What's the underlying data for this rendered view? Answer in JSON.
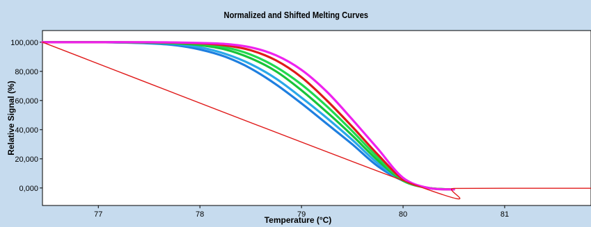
{
  "chart_data": {
    "type": "line",
    "title": "Normalized and Shifted Melting Curves",
    "xlabel": "Temperature (°C)",
    "ylabel": "Relative Signal (%)",
    "xlim": [
      76.45,
      81.85
    ],
    "ylim": [
      -12,
      108
    ],
    "x_ticks": [
      77,
      78,
      79,
      80,
      81
    ],
    "x_tick_labels": [
      "77",
      "78",
      "79",
      "80",
      "81"
    ],
    "y_ticks": [
      0,
      20,
      40,
      60,
      80,
      100
    ],
    "y_tick_labels": [
      "0,000",
      "20,000",
      "40,000",
      "60,000",
      "80,000",
      "100,000"
    ],
    "grid": false,
    "colors": {
      "background": "#c6dbee",
      "plot": "#ffffff"
    },
    "series": [
      {
        "color": "#1e7fe0",
        "x": [
          76.45,
          77.0,
          77.5,
          77.75,
          78.0,
          78.25,
          78.5,
          78.75,
          79.0,
          79.25,
          79.5,
          79.75,
          80.0,
          80.25,
          80.5
        ],
        "y": [
          100,
          100,
          99.2,
          98,
          95,
          90,
          82,
          71,
          58,
          44,
          30,
          15,
          5,
          0,
          -1
        ]
      },
      {
        "color": "#2aa8e8",
        "x": [
          76.45,
          77.0,
          77.5,
          77.75,
          78.0,
          78.25,
          78.5,
          78.75,
          79.0,
          79.25,
          79.5,
          79.75,
          80.0,
          80.25,
          80.5
        ],
        "y": [
          100,
          100,
          99.5,
          98.8,
          96.5,
          92,
          85,
          75,
          62,
          48,
          33,
          17,
          5,
          0,
          -1
        ]
      },
      {
        "color": "#18c43a",
        "x": [
          76.45,
          77.0,
          77.5,
          77.75,
          78.0,
          78.25,
          78.5,
          78.75,
          79.0,
          79.25,
          79.5,
          79.75,
          80.0,
          80.25,
          80.5
        ],
        "y": [
          100,
          100,
          99.7,
          99.2,
          98,
          95,
          89,
          80,
          67,
          52,
          36,
          19,
          5,
          0,
          -1
        ]
      },
      {
        "color": "#22d84e",
        "x": [
          76.45,
          77.0,
          77.5,
          77.75,
          78.0,
          78.25,
          78.5,
          78.75,
          79.0,
          79.25,
          79.5,
          79.75,
          80.0,
          80.25,
          80.5
        ],
        "y": [
          100,
          100,
          99.8,
          99.5,
          98.8,
          96.5,
          91.5,
          83,
          71,
          56,
          39,
          21,
          5.5,
          0,
          -1
        ]
      },
      {
        "color": "#e01a1a",
        "x": [
          76.45,
          77.0,
          77.5,
          77.75,
          78.0,
          78.25,
          78.5,
          78.75,
          79.0,
          79.25,
          79.5,
          79.75,
          80.0,
          80.25,
          80.5
        ],
        "y": [
          100,
          100,
          99.9,
          99.7,
          99.2,
          97.8,
          94.5,
          87.5,
          76,
          60,
          42,
          23,
          6,
          0,
          -1
        ]
      },
      {
        "color": "#ee22ee",
        "x": [
          76.45,
          77.0,
          77.5,
          77.75,
          78.0,
          78.25,
          78.5,
          78.75,
          79.0,
          79.25,
          79.5,
          79.75,
          80.0,
          80.25,
          80.5
        ],
        "y": [
          100,
          100,
          100,
          99.8,
          99.5,
          98.8,
          96.5,
          91,
          81,
          66,
          47,
          27,
          7,
          0,
          -1
        ]
      },
      {
        "color": "#e01a1a",
        "x": [
          76.45,
          80.2,
          80.5,
          81.0,
          81.85
        ],
        "y": [
          100,
          0,
          -0.3,
          -0.2,
          -0.2
        ]
      }
    ]
  }
}
